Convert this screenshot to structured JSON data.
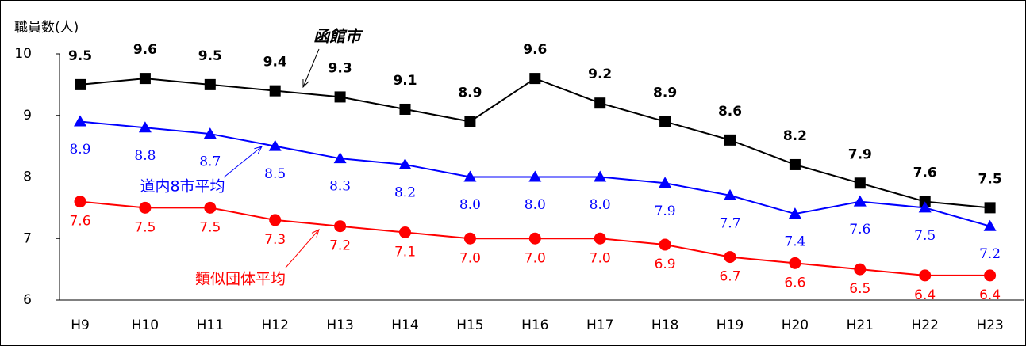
{
  "chart_data": {
    "type": "line",
    "y_label": "職員数(人)",
    "categories": [
      "H9",
      "H10",
      "H11",
      "H12",
      "H13",
      "H14",
      "H15",
      "H16",
      "H17",
      "H18",
      "H19",
      "H20",
      "H21",
      "H22",
      "H23"
    ],
    "series": [
      {
        "name": "函館市",
        "color": "#000000",
        "marker": "square",
        "values": [
          9.5,
          9.6,
          9.5,
          9.4,
          9.3,
          9.1,
          8.9,
          9.6,
          9.2,
          8.9,
          8.6,
          8.2,
          7.9,
          7.6,
          7.5
        ],
        "value_labels": [
          "9.5",
          "9.6",
          "9.5",
          "9.4",
          "9.3",
          "9.1",
          "8.9",
          "9.6",
          "9.2",
          "8.9",
          "8.6",
          "8.2",
          "7.9",
          "7.6",
          "7.5"
        ]
      },
      {
        "name": "道内8市平均",
        "color": "#0000ff",
        "marker": "triangle",
        "values": [
          8.9,
          8.8,
          8.7,
          8.5,
          8.3,
          8.2,
          8.0,
          8.0,
          8.0,
          7.9,
          7.7,
          7.4,
          7.6,
          7.5,
          7.2
        ],
        "value_labels": [
          "8.9",
          "8.8",
          "8.7",
          "8.5",
          "8.3",
          "8.2",
          "8.0",
          "8.0",
          "8.0",
          "7.9",
          "7.7",
          "7.4",
          "7.6",
          "7.5",
          "7.2"
        ]
      },
      {
        "name": "類似団体平均",
        "color": "#ff0000",
        "marker": "circle",
        "values": [
          7.6,
          7.5,
          7.5,
          7.3,
          7.2,
          7.1,
          7.0,
          7.0,
          7.0,
          6.9,
          6.7,
          6.6,
          6.5,
          6.4,
          6.4
        ],
        "value_labels": [
          "7.6",
          "7.5",
          "7.5",
          "7.3",
          "7.2",
          "7.1",
          "7.0",
          "7.0",
          "7.0",
          "6.9",
          "6.7",
          "6.6",
          "6.5",
          "6.4",
          "6.4"
        ]
      }
    ],
    "ylim": [
      6,
      10
    ],
    "yticks": [
      6,
      7,
      8,
      9,
      10
    ]
  }
}
